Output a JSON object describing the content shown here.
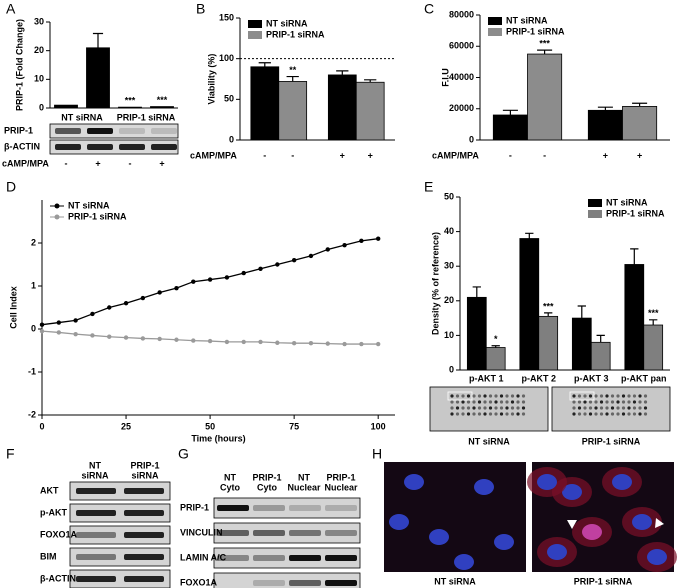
{
  "panel_labels": [
    "A",
    "B",
    "C",
    "D",
    "E",
    "F",
    "G",
    "H"
  ],
  "chart_data": [
    {
      "type": "bar",
      "y_label": "PRIP-1 (Fold Change)",
      "categories": [
        "-",
        "+",
        "-",
        "+"
      ],
      "values": [
        1,
        21,
        0.3,
        0.5
      ],
      "errors": [
        null,
        5,
        null,
        null
      ],
      "annotations": [
        null,
        null,
        "***",
        "***"
      ],
      "color": "#000000",
      "groups": [
        "NT siRNA",
        "PRIP-1 siRNA"
      ],
      "row_label": "cAMP/MPA",
      "ylim": [
        0,
        30
      ],
      "yticks": [
        0,
        10,
        20,
        30
      ]
    },
    {
      "type": "bar",
      "y_label": "Viability (%)",
      "categories": [
        "-",
        "+"
      ],
      "series": [
        {
          "name": "NT siRNA",
          "color": "#000000",
          "values": [
            90,
            80
          ],
          "errors": [
            5,
            5
          ]
        },
        {
          "name": "PRIP-1 siRNA",
          "color": "#8c8c8c",
          "values": [
            72,
            71
          ],
          "errors": [
            6,
            3
          ],
          "annotations": [
            "**",
            null
          ]
        }
      ],
      "reference_line": 100,
      "row_label": "cAMP/MPA",
      "ylim": [
        0,
        150
      ],
      "yticks": [
        0,
        50,
        100,
        150
      ],
      "legend": "upper left"
    },
    {
      "type": "bar",
      "y_label": "F.I.U",
      "categories": [
        "-",
        "+"
      ],
      "series": [
        {
          "name": "NT siRNA",
          "color": "#000000",
          "values": [
            16000,
            19000
          ],
          "errors": [
            3000,
            2000
          ]
        },
        {
          "name": "PRIP-1 siRNA",
          "color": "#8c8c8c",
          "values": [
            55000,
            21500
          ],
          "errors": [
            2500,
            2000
          ],
          "annotations": [
            "***",
            null
          ]
        }
      ],
      "row_label": "cAMP/MPA",
      "ylim": [
        0,
        80000
      ],
      "yticks": [
        0,
        20000,
        40000,
        60000,
        80000
      ],
      "legend": "upper left"
    },
    {
      "type": "line",
      "x_label": "Time (hours)",
      "y_label": "Cell Index",
      "x": [
        0,
        5,
        10,
        15,
        20,
        25,
        30,
        35,
        40,
        45,
        50,
        55,
        60,
        65,
        70,
        75,
        80,
        85,
        90,
        95,
        100
      ],
      "series": [
        {
          "name": "NT siRNA",
          "color": "#000000",
          "values": [
            0.1,
            0.15,
            0.2,
            0.35,
            0.5,
            0.6,
            0.72,
            0.85,
            0.95,
            1.1,
            1.15,
            1.2,
            1.3,
            1.4,
            1.5,
            1.6,
            1.7,
            1.85,
            1.95,
            2.05,
            2.1
          ]
        },
        {
          "name": "PRIP-1 siRNA",
          "color": "#9a9a9a",
          "values": [
            -0.05,
            -0.08,
            -0.12,
            -0.15,
            -0.18,
            -0.2,
            -0.22,
            -0.23,
            -0.25,
            -0.27,
            -0.28,
            -0.3,
            -0.3,
            -0.3,
            -0.32,
            -0.33,
            -0.33,
            -0.34,
            -0.35,
            -0.35,
            -0.35
          ]
        }
      ],
      "xlim": [
        0,
        105
      ],
      "xticks": [
        0,
        25,
        50,
        75,
        100
      ],
      "ylim": [
        -2,
        3
      ],
      "yticks": [
        -2,
        -1,
        0,
        1,
        2
      ],
      "legend": "upper left"
    },
    {
      "type": "bar",
      "y_label": "Density (% of reference)",
      "categories": [
        "p-AKT 1",
        "p-AKT 2",
        "p-AKT 3",
        "p-AKT pan"
      ],
      "series": [
        {
          "name": "NT siRNA",
          "color": "#000000",
          "values": [
            21,
            38,
            15,
            30.5
          ],
          "errors": [
            3,
            1.5,
            3.5,
            4.5
          ]
        },
        {
          "name": "PRIP-1 siRNA",
          "color": "#7f7f7f",
          "values": [
            6.5,
            15.5,
            8,
            13
          ],
          "errors": [
            0.5,
            1,
            2,
            1.5
          ],
          "annotations": [
            "*",
            "***",
            null,
            "***"
          ]
        }
      ],
      "ylim": [
        0,
        50
      ],
      "yticks": [
        0,
        10,
        20,
        30,
        40,
        50
      ],
      "legend": "upper right"
    }
  ],
  "blot_a": {
    "rows": [
      "PRIP-1",
      "β-ACTIN"
    ]
  },
  "blot_e": {
    "captions": [
      "NT siRNA",
      "PRIP-1 siRNA"
    ]
  },
  "blot_f": {
    "columns": [
      [
        "NT",
        "siRNA"
      ],
      [
        "PRIP-1",
        "siRNA"
      ]
    ],
    "rows": [
      "AKT",
      "p-AKT",
      "FOXO1A",
      "BIM",
      "β-ACTIN"
    ]
  },
  "blot_g": {
    "columns": [
      [
        "NT",
        "Cyto"
      ],
      [
        "PRIP-1",
        "Cyto"
      ],
      [
        "NT",
        "Nuclear"
      ],
      [
        "PRIP-1",
        "Nuclear"
      ]
    ],
    "rows": [
      "PRIP-1",
      "VINCULIN",
      "LAMIN A/C",
      "FOXO1A"
    ]
  },
  "image_h": {
    "captions": [
      "NT siRNA",
      "PRIP-1 siRNA"
    ]
  }
}
